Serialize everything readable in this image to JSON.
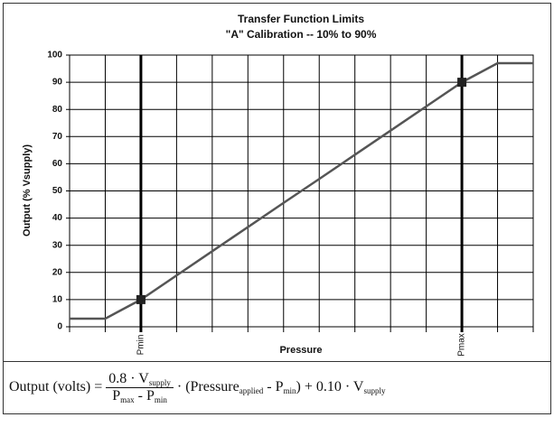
{
  "chart_data": {
    "type": "line",
    "title": "Transfer Function Limits",
    "subtitle": "\"A\" Calibration -- 10% to 90%",
    "y_label": "Output (% Vsupply)",
    "x_label": "Pressure",
    "categories": [
      null,
      null,
      "Pmin",
      null,
      null,
      null,
      null,
      null,
      null,
      null,
      null,
      "Pmax",
      null,
      null
    ],
    "series": [
      {
        "name": "Output",
        "color": "#555555",
        "values": [
          3,
          3,
          10,
          18.9,
          27.8,
          36.7,
          45.6,
          54.4,
          63.3,
          72.2,
          81.1,
          90,
          97,
          97
        ]
      }
    ],
    "ylim": [
      0,
      100
    ],
    "yticks": [
      0,
      10,
      20,
      30,
      40,
      50,
      60,
      70,
      80,
      90,
      100
    ],
    "grid": true
  },
  "formula": {
    "lhs": "Output (volts)",
    "equals": "=",
    "numerator": [
      "0.8 · V",
      "supply"
    ],
    "denominator": [
      "P",
      "max",
      " - P",
      "min"
    ],
    "rhs": [
      "· (Pressure",
      "applied",
      " - P",
      "min",
      ") + 0.10 · V",
      "supply"
    ]
  }
}
